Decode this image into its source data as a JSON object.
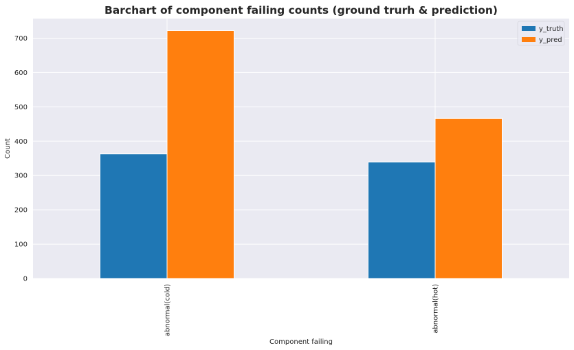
{
  "chart_data": {
    "type": "bar",
    "title": "Barchart of component failing counts (ground trurh & prediction)",
    "xlabel": "Component failing",
    "ylabel": "Count",
    "categories": [
      "abnormal(cold)",
      "abnormal(hot)"
    ],
    "series": [
      {
        "name": "y_truth",
        "values": [
          363,
          339
        ],
        "color": "#1f77b4"
      },
      {
        "name": "y_pred",
        "values": [
          722,
          466
        ],
        "color": "#ff7f0e"
      }
    ],
    "ylim": [
      0,
      757
    ],
    "yticks": [
      0,
      100,
      200,
      300,
      400,
      500,
      600,
      700
    ],
    "grid": true,
    "legend_position": "top-right",
    "background": "#eaeaf2"
  }
}
